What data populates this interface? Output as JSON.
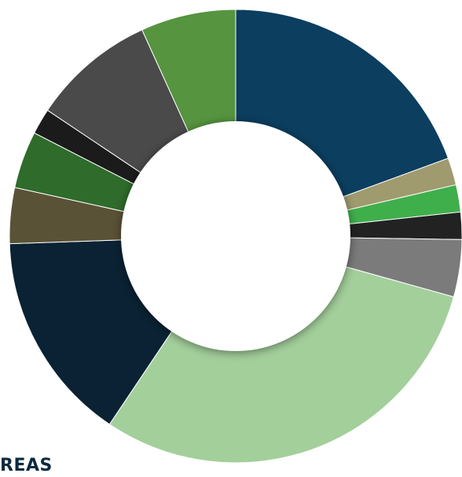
{
  "caption": "REAS",
  "chart_data": {
    "type": "pie",
    "donut": true,
    "title": "",
    "slices": [
      {
        "value": 20.0,
        "color": "#0b3e5f"
      },
      {
        "value": 2.0,
        "color": "#a09a6f"
      },
      {
        "value": 2.0,
        "color": "#3faf4b"
      },
      {
        "value": 2.0,
        "color": "#222222"
      },
      {
        "value": 4.2,
        "color": "#7b7b7b"
      },
      {
        "value": 31.0,
        "color": "#a3cf9b"
      },
      {
        "value": 15.5,
        "color": "#0a2233"
      },
      {
        "value": 4.1,
        "color": "#5a5236"
      },
      {
        "value": 4.2,
        "color": "#2f6b2b"
      },
      {
        "value": 1.9,
        "color": "#1b1b1b"
      },
      {
        "value": 9.1,
        "color": "#4a4a4a"
      },
      {
        "value": 7.0,
        "color": "#56943f"
      }
    ]
  }
}
